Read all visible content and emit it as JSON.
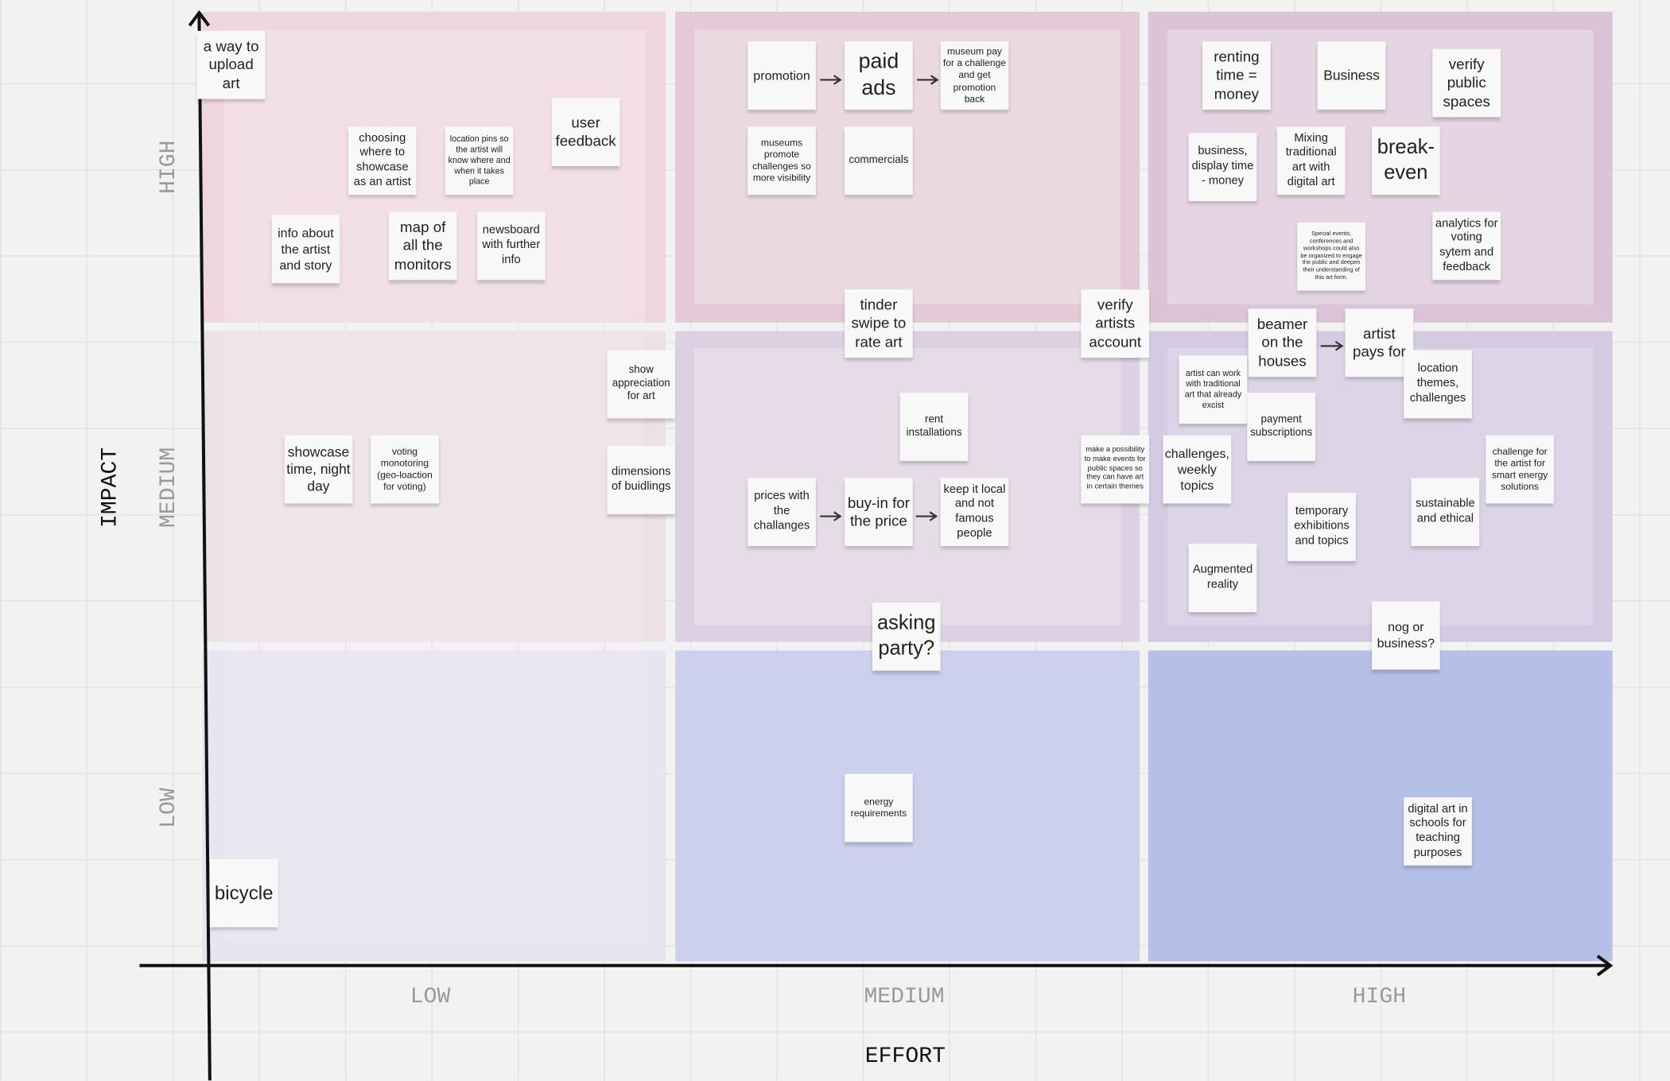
{
  "axes": {
    "y_title": "IMPACT",
    "y_levels": [
      "HIGH",
      "MEDIUM",
      "LOW"
    ],
    "x_levels": [
      "LOW",
      "MEDIUM",
      "HIGH"
    ],
    "x_title": "EFFORT"
  },
  "notes": [
    "a way to upload art",
    "choosing where to showcase as an artist",
    "location pins so the artist will know where and when it takes place",
    "user feedback",
    "info about the artist and story",
    "map of all the monitors",
    "newsboard with further info",
    "promotion",
    "paid ads",
    "museum pay for a challenge and get promotion back",
    "museums promote challenges so more visibility",
    "commercials",
    "renting time = money",
    "Business",
    "verify public spaces",
    "business, display time - money",
    "Mixing traditional art with digital art",
    "break-even",
    "Special events, conferences and workshops could also be organized to engage the public and deepen their understanding of this art form.",
    "analytics for voting sytem and feedback",
    "tinder swipe to rate art",
    "verify artists account",
    "beamer on the houses",
    "artist pays for",
    "show appreciation for art",
    "artist can work with traditional art that already excist",
    "location themes, challenges",
    "rent installations",
    "payment subscriptions",
    "showcase time, night day",
    "voting monotoring (geo-loaction for voting)",
    "dimensions of buidlings",
    "make a possibility to make events for public spaces so they can have art in certain themes",
    "challenges, weekly topics",
    "challenge for the artist for smart energy solutions",
    "prices with the challanges",
    "buy-in for the price",
    "keep it local and not famous people",
    "temporary exhibitions and topics",
    "sustainable and ethical",
    "Augmented reality",
    "asking party?",
    "nog or business?",
    "energy requirements",
    "digital art in schools for teaching purposes",
    "bicycle"
  ]
}
